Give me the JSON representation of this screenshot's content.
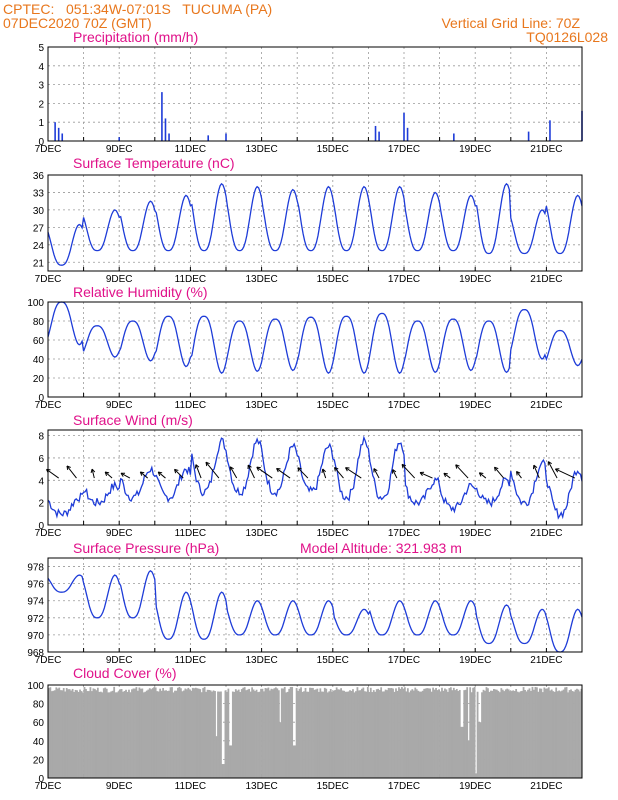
{
  "header": {
    "line1": "CPTEC:   051:34W-07:01S   TUCUMA (PA)",
    "line2": "07DEC2020 70Z (GMT)",
    "grid_note": "Vertical Grid Line: 70Z",
    "code": "TQ0126L028",
    "color": "#e8771d"
  },
  "colors": {
    "title": "#e0128a",
    "line": "#1e3cd8",
    "cloud": "#a9a9a9",
    "grid": "#9a9a9a"
  },
  "chart_data": [
    {
      "type": "bar",
      "title": "Precipitation (mm/h)",
      "ylim": [
        0,
        5
      ],
      "yticks": [
        "0",
        "1",
        "2",
        "3",
        "4",
        "5"
      ],
      "xticks": [
        "7DEC",
        "9DEC",
        "11DEC",
        "13DEC",
        "15DEC",
        "17DEC",
        "19DEC",
        "21DEC"
      ],
      "x_days_span": [
        7,
        22
      ],
      "events": [
        {
          "day": 7.2,
          "value": 1.0
        },
        {
          "day": 7.3,
          "value": 0.7
        },
        {
          "day": 7.4,
          "value": 0.4
        },
        {
          "day": 9.0,
          "value": 0.2
        },
        {
          "day": 10.2,
          "value": 2.6
        },
        {
          "day": 10.3,
          "value": 1.2
        },
        {
          "day": 10.4,
          "value": 0.4
        },
        {
          "day": 11.5,
          "value": 0.3
        },
        {
          "day": 12.0,
          "value": 0.4
        },
        {
          "day": 16.2,
          "value": 0.8
        },
        {
          "day": 16.3,
          "value": 0.5
        },
        {
          "day": 17.0,
          "value": 1.5
        },
        {
          "day": 17.1,
          "value": 0.7
        },
        {
          "day": 18.4,
          "value": 0.4
        },
        {
          "day": 20.5,
          "value": 0.5
        },
        {
          "day": 21.1,
          "value": 1.1
        },
        {
          "day": 22.0,
          "value": 1.6
        }
      ]
    },
    {
      "type": "line",
      "title": "Surface Temperature (nC)",
      "ylim": [
        19.5,
        36
      ],
      "yticks": [
        "21",
        "24",
        "27",
        "30",
        "33",
        "36"
      ],
      "xticks": [
        "7DEC",
        "9DEC",
        "11DEC",
        "13DEC",
        "15DEC",
        "17DEC",
        "19DEC",
        "21DEC"
      ],
      "daily_min": [
        20.5,
        23,
        23,
        23,
        23,
        23,
        23,
        23,
        23,
        23,
        23,
        23,
        22.5,
        22.5,
        22.5
      ],
      "daily_max": [
        27.5,
        30,
        31.5,
        32.5,
        34.5,
        34,
        33.5,
        34,
        34,
        34,
        33,
        32.5,
        34.5,
        30,
        32.5
      ]
    },
    {
      "type": "line",
      "title": "Relative Humidity (%)",
      "ylim": [
        0,
        100
      ],
      "yticks": [
        "0",
        "20",
        "40",
        "60",
        "80",
        "100"
      ],
      "xticks": [
        "7DEC",
        "9DEC",
        "11DEC",
        "13DEC",
        "15DEC",
        "17DEC",
        "19DEC",
        "21DEC"
      ],
      "daily_min": [
        55,
        42,
        38,
        32,
        25,
        27,
        28,
        25,
        25,
        25,
        26,
        28,
        26,
        40,
        33
      ],
      "daily_max": [
        100,
        75,
        80,
        85,
        85,
        80,
        82,
        84,
        85,
        88,
        80,
        82,
        80,
        92,
        70
      ]
    },
    {
      "type": "line",
      "title": "Surface Wind (m/s)",
      "ylim": [
        0,
        8.5
      ],
      "yticks": [
        "0",
        "2",
        "4",
        "6",
        "8"
      ],
      "xticks": [
        "7DEC",
        "9DEC",
        "11DEC",
        "13DEC",
        "15DEC",
        "17DEC",
        "19DEC",
        "21DEC"
      ],
      "daily_min": [
        1.0,
        2.0,
        2.5,
        2.5,
        3.0,
        3.0,
        3.0,
        3.0,
        2.5,
        2.5,
        2.0,
        1.5,
        2.0,
        2.0,
        1.0
      ],
      "daily_max": [
        2.5,
        3.5,
        5.0,
        5.0,
        7.5,
        7.5,
        7.0,
        7.0,
        7.5,
        7.5,
        4.0,
        3.5,
        4.0,
        5.5,
        5.0
      ]
    },
    {
      "type": "line",
      "title": "Surface Pressure (hPa)",
      "annotation": "Model Altitude: 321.983 m",
      "ylim": [
        968,
        979
      ],
      "yticks": [
        "968",
        "970",
        "972",
        "974",
        "976",
        "978"
      ],
      "xticks": [
        "7DEC",
        "9DEC",
        "11DEC",
        "13DEC",
        "15DEC",
        "17DEC",
        "19DEC",
        "21DEC"
      ],
      "daily_min": [
        975,
        972,
        972,
        969.5,
        969.5,
        970,
        970,
        970,
        970,
        970,
        970,
        970,
        969,
        969,
        968
      ],
      "daily_max": [
        977,
        977,
        977.5,
        975,
        975,
        974,
        974,
        974,
        973,
        974,
        974,
        974,
        973.5,
        973,
        973
      ]
    },
    {
      "type": "bar",
      "title": "Cloud Cover (%)",
      "ylim": [
        0,
        100
      ],
      "yticks": [
        "0",
        "20",
        "40",
        "60",
        "80",
        "100"
      ],
      "xticks": [
        "7DEC",
        "9DEC",
        "11DEC",
        "13DEC",
        "15DEC",
        "17DEC",
        "19DEC",
        "21DEC"
      ],
      "baseline": 95,
      "dips": [
        {
          "day": 11.7,
          "value": 45
        },
        {
          "day": 11.9,
          "value": 15
        },
        {
          "day": 12.1,
          "value": 35
        },
        {
          "day": 13.5,
          "value": 60
        },
        {
          "day": 13.9,
          "value": 35
        },
        {
          "day": 18.6,
          "value": 55
        },
        {
          "day": 18.8,
          "value": 40
        },
        {
          "day": 19.0,
          "value": 5
        },
        {
          "day": 19.1,
          "value": 60
        }
      ]
    }
  ]
}
